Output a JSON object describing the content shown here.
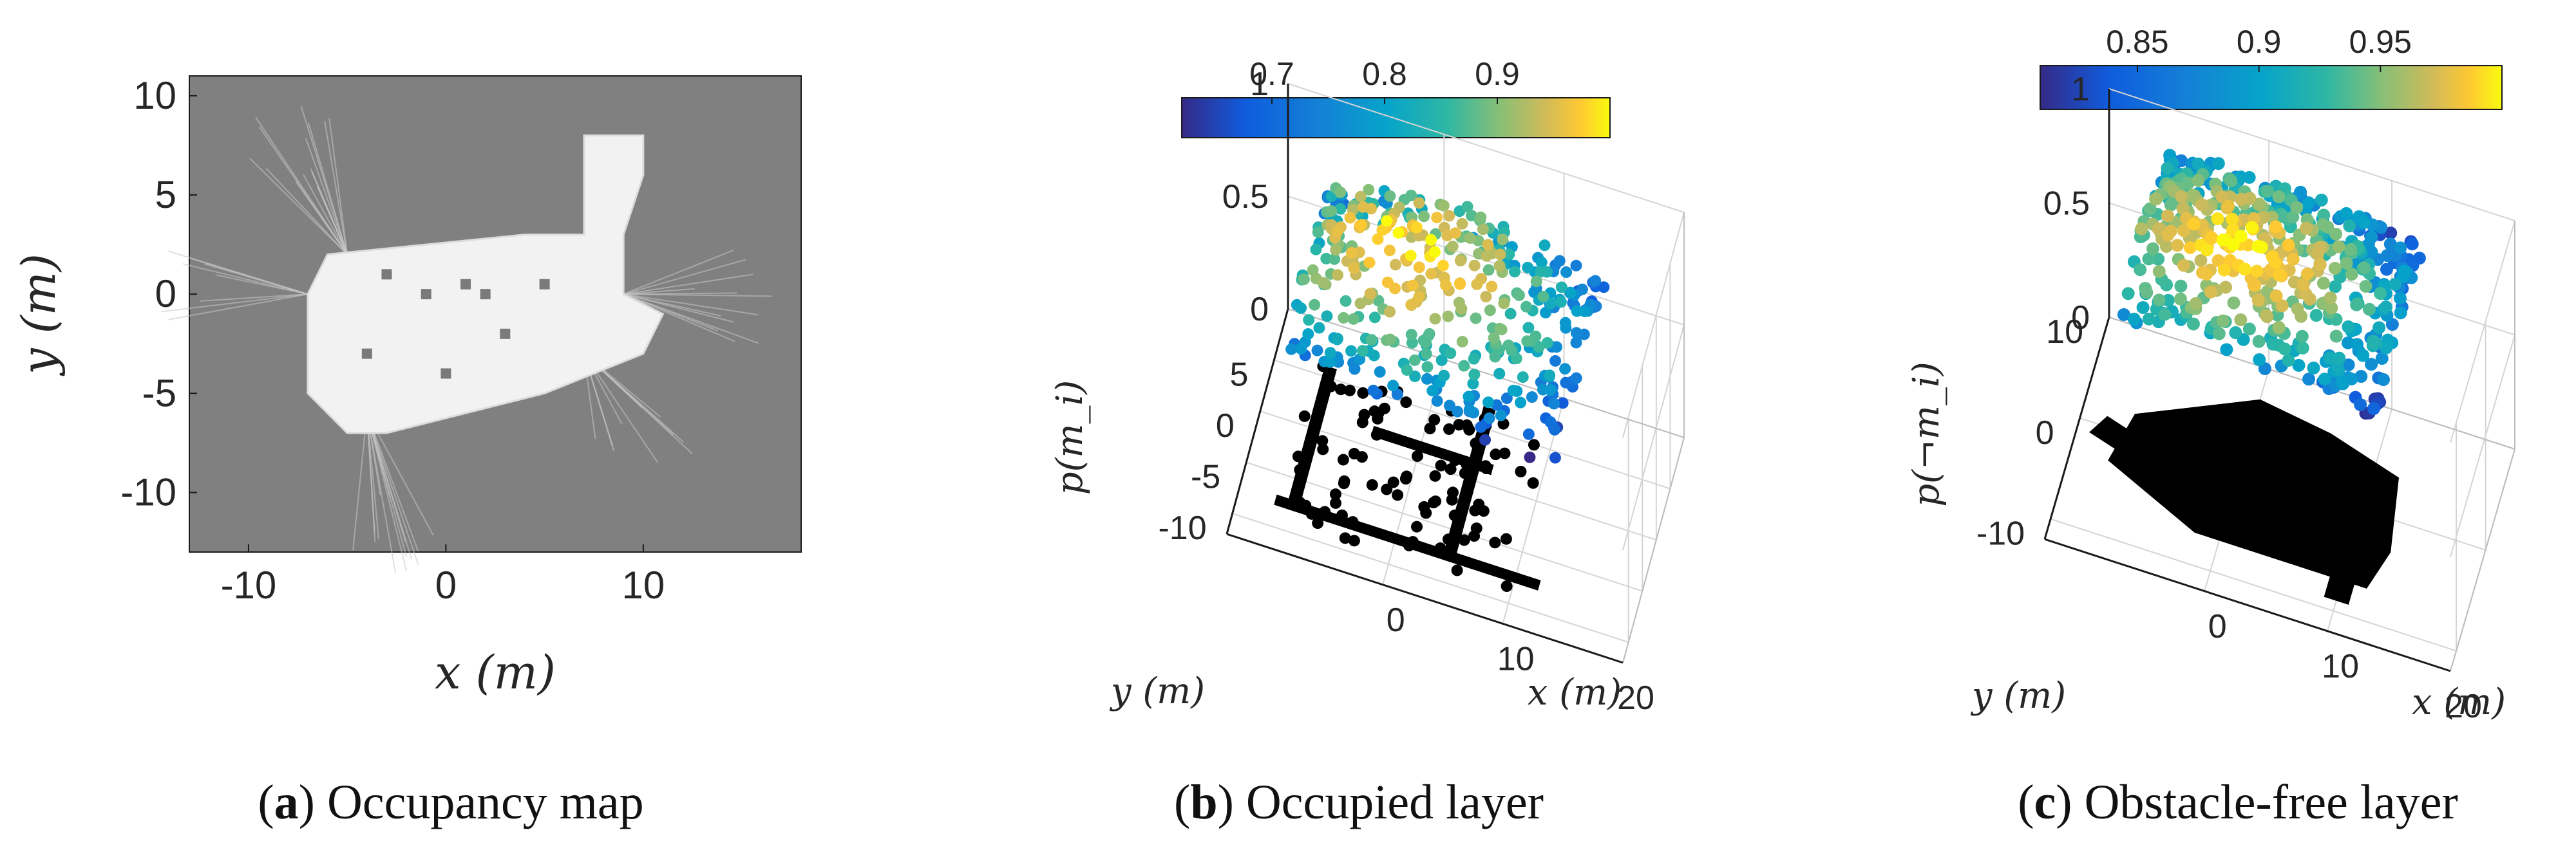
{
  "captions": [
    {
      "letter": "a",
      "text": "Occupancy map"
    },
    {
      "letter": "b",
      "text": "Occupied layer"
    },
    {
      "letter": "c",
      "text": "Obstacle-free layer"
    }
  ],
  "chart_data": [
    {
      "type": "heatmap",
      "panel": "a",
      "xlabel": "x (m)",
      "ylabel": "y (m)",
      "xlim": [
        -13,
        18
      ],
      "ylim": [
        -13,
        11
      ],
      "xticks": [
        "-10",
        "0",
        "10"
      ],
      "yticks": [
        "10",
        "5",
        "0",
        "-5",
        "-10"
      ],
      "background_color": "#808080",
      "free_color": "#f2f2f2",
      "free_region": [
        [
          -7,
          -5
        ],
        [
          -5,
          -7
        ],
        [
          -3,
          -7
        ],
        [
          5,
          -5
        ],
        [
          10,
          -3
        ],
        [
          11,
          -1
        ],
        [
          9,
          0
        ],
        [
          9,
          3
        ],
        [
          10,
          6
        ],
        [
          10,
          8
        ],
        [
          7,
          8
        ],
        [
          7,
          3
        ],
        [
          4,
          3
        ],
        [
          -6,
          2
        ],
        [
          -7,
          0
        ]
      ]
    },
    {
      "type": "scatter",
      "panel": "b",
      "projection": "3d",
      "zlabel": "p(m_i)",
      "xlabel": "x (m)",
      "ylabel": "y (m)",
      "zticks": [
        "0",
        "0.5",
        "1"
      ],
      "xticks": [
        "0",
        "10",
        "20"
      ],
      "yticks": [
        "5",
        "0",
        "-5",
        "-10"
      ],
      "zlim": [
        0,
        1
      ],
      "xlim": [
        -13,
        20
      ],
      "ylim": [
        -12,
        10
      ],
      "colorbar": {
        "ticks": [
          "0.7",
          "0.8",
          "0.9"
        ],
        "range": [
          0.62,
          1.0
        ],
        "colormap": "parula"
      },
      "grid": true,
      "points_description": "occupied cells, z = p(m_i) between about 0.6 and 1.0, with black footprint at z = 0"
    },
    {
      "type": "scatter",
      "panel": "c",
      "projection": "3d",
      "zlabel": "p(¬m_i)",
      "xlabel": "x (m)",
      "ylabel": "y (m)",
      "zticks": [
        "0",
        "0.5",
        "1"
      ],
      "xticks": [
        "0",
        "10",
        "20"
      ],
      "yticks": [
        "10",
        "0",
        "-10"
      ],
      "zlim": [
        0,
        1
      ],
      "xlim": [
        -13,
        20
      ],
      "ylim": [
        -12,
        10
      ],
      "colorbar": {
        "ticks": [
          "0.85",
          "0.9",
          "0.95"
        ],
        "range": [
          0.81,
          1.0
        ],
        "colormap": "parula"
      },
      "grid": true,
      "points_description": "free cells, z = p(¬m_i) between about 0.8 and 1.0, with black footprint at z = 0"
    }
  ]
}
